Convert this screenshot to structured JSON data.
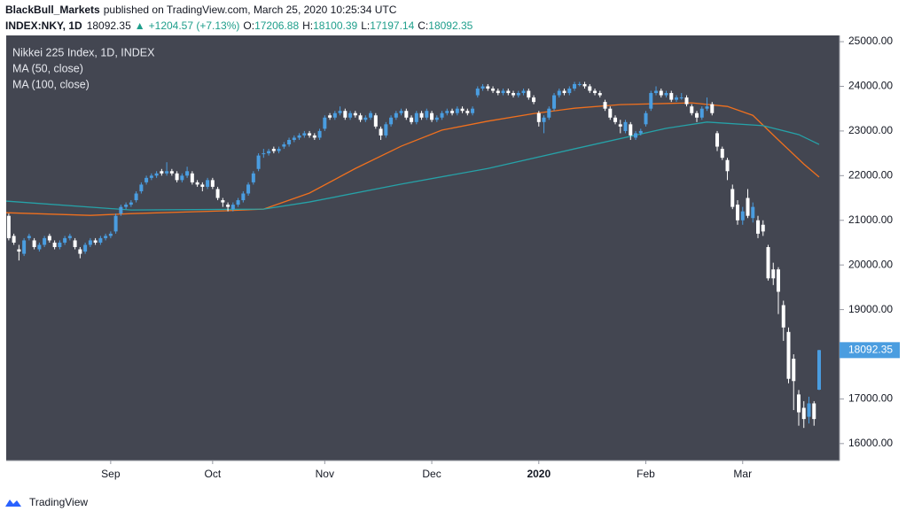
{
  "header": {
    "publisher": "BlackBull_Markets",
    "published_text": "published on TradingView.com, March 25, 2020 10:25:34 UTC"
  },
  "chart_data": {
    "type": "candlestick",
    "symbol": "INDEX:NKY, 1D",
    "change_arrow": "▲",
    "change_text": "+1204.57 (+7.13%)",
    "ohlc_labels": [
      "O:",
      "H:",
      "L:",
      "C:"
    ],
    "legend_title": "Nikkei 225 Index, 1D, INDEX",
    "up_color": "#4a9de0",
    "down_color": "#ffffff",
    "background": "#434651",
    "candles": [
      [
        21100,
        21150,
        20550,
        20600
      ],
      [
        20650,
        20700,
        20450,
        20500
      ],
      [
        20350,
        20450,
        20100,
        20300
      ],
      [
        20250,
        20600,
        20200,
        20550
      ],
      [
        20600,
        20700,
        20550,
        20650
      ],
      [
        20550,
        20600,
        20350,
        20400
      ],
      [
        20350,
        20500,
        20300,
        20450
      ],
      [
        20450,
        20650,
        20400,
        20600
      ],
      [
        20650,
        20700,
        20500,
        20550
      ],
      [
        20500,
        20550,
        20350,
        20400
      ],
      [
        20400,
        20550,
        20350,
        20500
      ],
      [
        20500,
        20650,
        20450,
        20600
      ],
      [
        20600,
        20700,
        20550,
        20650
      ],
      [
        20550,
        20600,
        20350,
        20400
      ],
      [
        20350,
        20400,
        20150,
        20250
      ],
      [
        20300,
        20500,
        20250,
        20450
      ],
      [
        20450,
        20600,
        20400,
        20550
      ],
      [
        20550,
        20600,
        20450,
        20500
      ],
      [
        20500,
        20650,
        20450,
        20600
      ],
      [
        20600,
        20700,
        20550,
        20650
      ],
      [
        20650,
        20750,
        20600,
        20700
      ],
      [
        20750,
        21150,
        20700,
        21100
      ],
      [
        21150,
        21350,
        21100,
        21300
      ],
      [
        21300,
        21400,
        21250,
        21350
      ],
      [
        21350,
        21450,
        21300,
        21400
      ],
      [
        21450,
        21650,
        21400,
        21600
      ],
      [
        21650,
        21850,
        21600,
        21800
      ],
      [
        21850,
        22000,
        21800,
        21950
      ],
      [
        21950,
        22050,
        21900,
        22000
      ],
      [
        22000,
        22100,
        21950,
        22050
      ],
      [
        22100,
        22150,
        22000,
        22050
      ],
      [
        22050,
        22300,
        22000,
        22100
      ],
      [
        22100,
        22150,
        22000,
        22050
      ],
      [
        22050,
        22100,
        21850,
        21900
      ],
      [
        21900,
        22050,
        21850,
        22000
      ],
      [
        22000,
        22200,
        21950,
        22100
      ],
      [
        22050,
        22100,
        21800,
        21850
      ],
      [
        21850,
        21900,
        21750,
        21800
      ],
      [
        21800,
        21850,
        21650,
        21750
      ],
      [
        21750,
        21950,
        21700,
        21900
      ],
      [
        21900,
        21950,
        21700,
        21750
      ],
      [
        21700,
        21750,
        21450,
        21500
      ],
      [
        21450,
        21500,
        21300,
        21400
      ],
      [
        21350,
        21400,
        21200,
        21300
      ],
      [
        21250,
        21400,
        21200,
        21350
      ],
      [
        21350,
        21500,
        21300,
        21450
      ],
      [
        21450,
        21650,
        21400,
        21600
      ],
      [
        21600,
        21850,
        21550,
        21800
      ],
      [
        21850,
        22100,
        21800,
        22050
      ],
      [
        22150,
        22500,
        22100,
        22450
      ],
      [
        22500,
        22600,
        22400,
        22500
      ],
      [
        22500,
        22600,
        22450,
        22550
      ],
      [
        22600,
        22650,
        22500,
        22550
      ],
      [
        22550,
        22650,
        22500,
        22600
      ],
      [
        22650,
        22750,
        22600,
        22700
      ],
      [
        22700,
        22850,
        22650,
        22800
      ],
      [
        22800,
        22900,
        22750,
        22850
      ],
      [
        22850,
        22950,
        22800,
        22900
      ],
      [
        22900,
        23000,
        22850,
        22950
      ],
      [
        22950,
        23000,
        22850,
        22900
      ],
      [
        22900,
        22950,
        22800,
        22850
      ],
      [
        22850,
        23050,
        22800,
        23000
      ],
      [
        23050,
        23350,
        23000,
        23300
      ],
      [
        23350,
        23400,
        23250,
        23300
      ],
      [
        23300,
        23450,
        23250,
        23400
      ],
      [
        23400,
        23550,
        23350,
        23450
      ],
      [
        23450,
        23500,
        23250,
        23300
      ],
      [
        23300,
        23450,
        23250,
        23400
      ],
      [
        23400,
        23450,
        23300,
        23350
      ],
      [
        23350,
        23400,
        23200,
        23250
      ],
      [
        23250,
        23350,
        23200,
        23300
      ],
      [
        23300,
        23450,
        23250,
        23400
      ],
      [
        23350,
        23400,
        23050,
        23100
      ],
      [
        23050,
        23100,
        22800,
        22900
      ],
      [
        22900,
        23200,
        22850,
        23150
      ],
      [
        23150,
        23350,
        23100,
        23300
      ],
      [
        23300,
        23450,
        23250,
        23400
      ],
      [
        23400,
        23500,
        23350,
        23450
      ],
      [
        23450,
        23500,
        23250,
        23300
      ],
      [
        23300,
        23350,
        23150,
        23200
      ],
      [
        23200,
        23450,
        23150,
        23400
      ],
      [
        23400,
        23450,
        23250,
        23300
      ],
      [
        23300,
        23500,
        23250,
        23450
      ],
      [
        23400,
        23450,
        23200,
        23250
      ],
      [
        23250,
        23350,
        23200,
        23300
      ],
      [
        23300,
        23450,
        23250,
        23400
      ],
      [
        23400,
        23500,
        23350,
        23450
      ],
      [
        23450,
        23500,
        23350,
        23400
      ],
      [
        23400,
        23550,
        23350,
        23500
      ],
      [
        23500,
        23550,
        23400,
        23450
      ],
      [
        23450,
        23500,
        23350,
        23400
      ],
      [
        23400,
        23550,
        23350,
        23500
      ],
      [
        23800,
        24000,
        23750,
        23950
      ],
      [
        23950,
        24050,
        23900,
        24000
      ],
      [
        24000,
        24050,
        23900,
        23950
      ],
      [
        23950,
        24000,
        23850,
        23900
      ],
      [
        23900,
        23950,
        23800,
        23850
      ],
      [
        23850,
        23950,
        23800,
        23900
      ],
      [
        23900,
        23950,
        23800,
        23850
      ],
      [
        23850,
        23900,
        23750,
        23800
      ],
      [
        23800,
        23900,
        23750,
        23850
      ],
      [
        23850,
        23950,
        23800,
        23900
      ],
      [
        23900,
        23950,
        23700,
        23750
      ],
      [
        23750,
        23800,
        23600,
        23650
      ],
      [
        23400,
        23450,
        23100,
        23200
      ],
      [
        23200,
        23350,
        22950,
        23300
      ],
      [
        23300,
        23550,
        23250,
        23500
      ],
      [
        23500,
        23850,
        23450,
        23800
      ],
      [
        23800,
        23950,
        23750,
        23900
      ],
      [
        23900,
        23950,
        23800,
        23850
      ],
      [
        23850,
        24000,
        23800,
        23950
      ],
      [
        23950,
        24100,
        23900,
        24050
      ],
      [
        24050,
        24100,
        24000,
        24050
      ],
      [
        24050,
        24100,
        23950,
        24000
      ],
      [
        24000,
        24050,
        23850,
        23900
      ],
      [
        23900,
        23950,
        23800,
        23850
      ],
      [
        23850,
        23900,
        23750,
        23800
      ],
      [
        23650,
        23700,
        23450,
        23500
      ],
      [
        23500,
        23550,
        23250,
        23300
      ],
      [
        23300,
        23350,
        23150,
        23200
      ],
      [
        23150,
        23250,
        22950,
        23100
      ],
      [
        23000,
        23250,
        22950,
        23200
      ],
      [
        23150,
        23200,
        22800,
        22900
      ],
      [
        22850,
        23000,
        22800,
        22950
      ],
      [
        22950,
        23050,
        22900,
        23000
      ],
      [
        23150,
        23450,
        23100,
        23400
      ],
      [
        23500,
        23900,
        23450,
        23850
      ],
      [
        23850,
        24000,
        23800,
        23900
      ],
      [
        23900,
        23950,
        23750,
        23800
      ],
      [
        23800,
        23900,
        23750,
        23850
      ],
      [
        23850,
        23900,
        23650,
        23700
      ],
      [
        23700,
        23800,
        23650,
        23750
      ],
      [
        23750,
        23850,
        23700,
        23750
      ],
      [
        23750,
        23800,
        23550,
        23600
      ],
      [
        23550,
        23600,
        23350,
        23400
      ],
      [
        23400,
        23450,
        23200,
        23300
      ],
      [
        23300,
        23550,
        23250,
        23500
      ],
      [
        23500,
        23750,
        23450,
        23550
      ],
      [
        23600,
        23650,
        23350,
        23400
      ],
      [
        22950,
        23000,
        22550,
        22650
      ],
      [
        22600,
        22650,
        22350,
        22400
      ],
      [
        22350,
        22400,
        21900,
        22100
      ],
      [
        21700,
        21800,
        21250,
        21300
      ],
      [
        21350,
        21450,
        20900,
        21000
      ],
      [
        21000,
        21300,
        20900,
        21200
      ],
      [
        21500,
        21700,
        21050,
        21100
      ],
      [
        21050,
        21400,
        20950,
        21300
      ],
      [
        21000,
        21100,
        20600,
        20700
      ],
      [
        20900,
        21000,
        20650,
        20750
      ],
      [
        20400,
        20450,
        19650,
        19700
      ],
      [
        19900,
        20050,
        19550,
        19700
      ],
      [
        19900,
        19950,
        18900,
        19400
      ],
      [
        19100,
        19200,
        18300,
        18600
      ],
      [
        18500,
        18600,
        17350,
        17450
      ],
      [
        17900,
        18000,
        16750,
        17400
      ],
      [
        17100,
        17200,
        16400,
        16700
      ],
      [
        16800,
        16950,
        16350,
        16550
      ],
      [
        16600,
        17050,
        16450,
        16900
      ],
      [
        16900,
        16950,
        16400,
        16550
      ],
      [
        17206.88,
        18100.39,
        17197.14,
        18092.35
      ]
    ],
    "series": [
      {
        "name": "MA (50, close)",
        "color": "#f0701e",
        "x": [
          -0.5,
          16,
          24,
          42,
          50,
          59,
          68,
          77,
          85,
          94,
          103,
          111,
          120,
          134,
          141,
          146,
          151,
          156,
          159
        ],
        "values": [
          21170,
          21110,
          21150,
          21210,
          21250,
          21610,
          22160,
          22660,
          23020,
          23220,
          23390,
          23510,
          23590,
          23630,
          23550,
          23350,
          22800,
          22260,
          21970
        ]
      },
      {
        "name": "MA (100, close)",
        "color": "#26a2a8",
        "x": [
          -0.5,
          24,
          50,
          59,
          77,
          94,
          111,
          129,
          137,
          148,
          155,
          159
        ],
        "values": [
          21430,
          21230,
          21250,
          21410,
          21810,
          22160,
          22600,
          23060,
          23200,
          23120,
          22920,
          22700
        ]
      }
    ],
    "xlim": [
      -0.5,
      163
    ],
    "xticks": [
      {
        "value": 20,
        "label": "Sep"
      },
      {
        "value": 40,
        "label": "Oct"
      },
      {
        "value": 62,
        "label": "Nov"
      },
      {
        "value": 83,
        "label": "Dec"
      },
      {
        "value": 104,
        "label": "2020"
      },
      {
        "value": 125,
        "label": "Feb"
      },
      {
        "value": 144,
        "label": "Mar"
      }
    ],
    "ylim": [
      15620,
      25140
    ],
    "yticks": [
      {
        "value": 16000,
        "label": "16000.00"
      },
      {
        "value": 17000,
        "label": "17000.00"
      },
      {
        "value": 18000,
        "label": "18000.00"
      },
      {
        "value": 19000,
        "label": "19000.00"
      },
      {
        "value": 20000,
        "label": "20000.00"
      },
      {
        "value": 21000,
        "label": "21000.00"
      },
      {
        "value": 22000,
        "label": "22000.00"
      },
      {
        "value": 23000,
        "label": "23000.00"
      },
      {
        "value": 24000,
        "label": "24000.00"
      },
      {
        "value": 25000,
        "label": "25000.00"
      }
    ],
    "grid": false
  },
  "footer": {
    "brand": "TradingView"
  }
}
